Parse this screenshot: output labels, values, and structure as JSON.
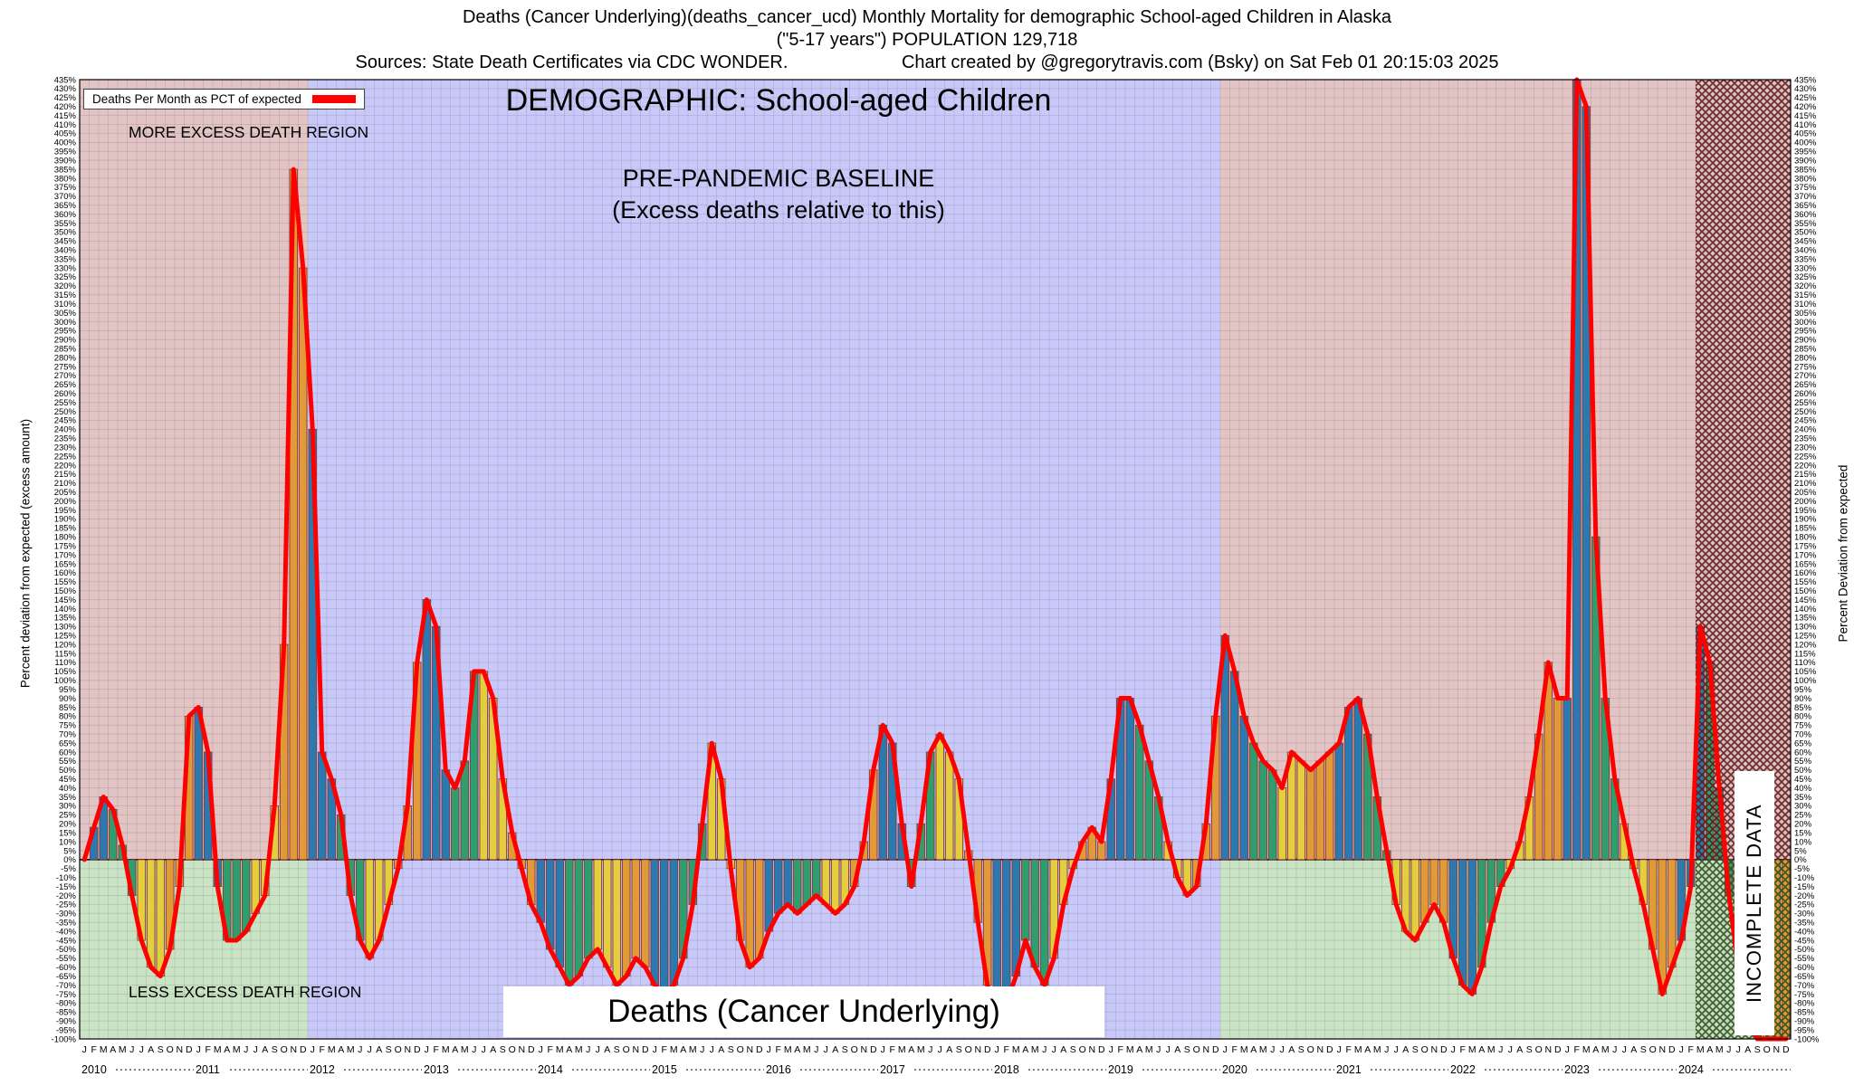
{
  "header": {
    "line1": "Deaths (Cancer Underlying)(deaths_cancer_ucd) Monthly Mortality for demographic School-aged Children in Alaska",
    "line2": "(\"5-17 years\") POPULATION 129,718",
    "line3_left": "Sources: State Death Certificates via CDC WONDER.",
    "line3_right": "Chart created by @gregorytravis.com (Bsky) on Sat Feb 01 20:15:03 2025"
  },
  "labels": {
    "legend": "Deaths Per Month as PCT of expected",
    "more_excess": "MORE EXCESS DEATH REGION",
    "less_excess": "LESS EXCESS DEATH REGION",
    "demographic": "DEMOGRAPHIC: School-aged Children",
    "baseline_1": "PRE-PANDEMIC BASELINE",
    "baseline_2": "(Excess deaths relative to this)",
    "bottom": "Deaths (Cancer Underlying)",
    "incomplete": "INCOMPLETE DATA",
    "y_left": "Percent deviation from expected (excess amount)",
    "y_right": "Percent Deviation from expected"
  },
  "chart_data": {
    "type": "bar+line",
    "title": "Deaths (Cancer Underlying)(deaths_cancer_ucd) Monthly Mortality for demographic School-aged Children in Alaska (\"5-17 years\") POPULATION 129,718",
    "ylabel_left": "Percent deviation from expected (excess amount)",
    "ylabel_right": "Percent Deviation from expected",
    "ylim": [
      -100,
      435
    ],
    "ytick_step": 5,
    "ytick_suffix": "%",
    "grid": true,
    "legend_position": "top-left",
    "x_start": "2010-01",
    "x_end": "2024-12",
    "years": [
      "2010",
      "2011",
      "2012",
      "2013",
      "2014",
      "2015",
      "2016",
      "2017",
      "2018",
      "2019",
      "2020",
      "2021",
      "2022",
      "2023",
      "2024"
    ],
    "month_letters": [
      "J",
      "F",
      "M",
      "A",
      "M",
      "J",
      "J",
      "A",
      "S",
      "O",
      "N",
      "D"
    ],
    "baseline_start_index": 24,
    "baseline_end_index": 120,
    "incomplete_start_index": 170,
    "series": [
      {
        "name": "Deaths Per Month as PCT of expected",
        "values": [
          0,
          18,
          35,
          28,
          8,
          -20,
          -45,
          -60,
          -65,
          -50,
          -15,
          80,
          85,
          60,
          -15,
          -45,
          -45,
          -40,
          -30,
          -20,
          30,
          120,
          385,
          330,
          240,
          60,
          45,
          25,
          -20,
          -45,
          -55,
          -45,
          -25,
          -5,
          30,
          110,
          145,
          130,
          50,
          40,
          55,
          105,
          105,
          90,
          45,
          15,
          -5,
          -25,
          -35,
          -50,
          -60,
          -70,
          -65,
          -55,
          -50,
          -60,
          -70,
          -65,
          -55,
          -60,
          -70,
          -75,
          -70,
          -55,
          -25,
          20,
          65,
          45,
          -5,
          -45,
          -60,
          -55,
          -40,
          -30,
          -25,
          -30,
          -25,
          -20,
          -25,
          -30,
          -25,
          -15,
          10,
          50,
          75,
          65,
          20,
          -15,
          20,
          60,
          70,
          60,
          45,
          5,
          -35,
          -70,
          -85,
          -80,
          -65,
          -45,
          -60,
          -70,
          -55,
          -25,
          -5,
          10,
          18,
          10,
          45,
          90,
          90,
          75,
          55,
          35,
          10,
          -10,
          -20,
          -15,
          20,
          80,
          125,
          105,
          80,
          65,
          55,
          50,
          40,
          60,
          55,
          50,
          55,
          60,
          65,
          85,
          90,
          70,
          35,
          5,
          -25,
          -40,
          -45,
          -35,
          -25,
          -35,
          -55,
          -70,
          -75,
          -60,
          -35,
          -15,
          -5,
          10,
          35,
          70,
          110,
          90,
          90,
          435,
          420,
          180,
          90,
          45,
          20,
          -5,
          -25,
          -50,
          -75,
          -60,
          -45,
          -15,
          130,
          110,
          40,
          -20,
          -60,
          -85,
          -100,
          -100,
          -100,
          -100
        ]
      }
    ],
    "colors": {
      "line": "#ff0000",
      "bar_q1": "#2a7ab0",
      "bar_q2": "#2e9e6e",
      "bar_q3": "#e3cf3e",
      "bar_q4": "#e09a38",
      "bar_outline": "#8a2a2a",
      "more_region": "#e2c4c4",
      "less_region": "#c9e3c4",
      "baseline_region": "#c9c9f9",
      "hatch_upper": "#5a1616",
      "hatch_lower": "#2a4a1a"
    }
  }
}
